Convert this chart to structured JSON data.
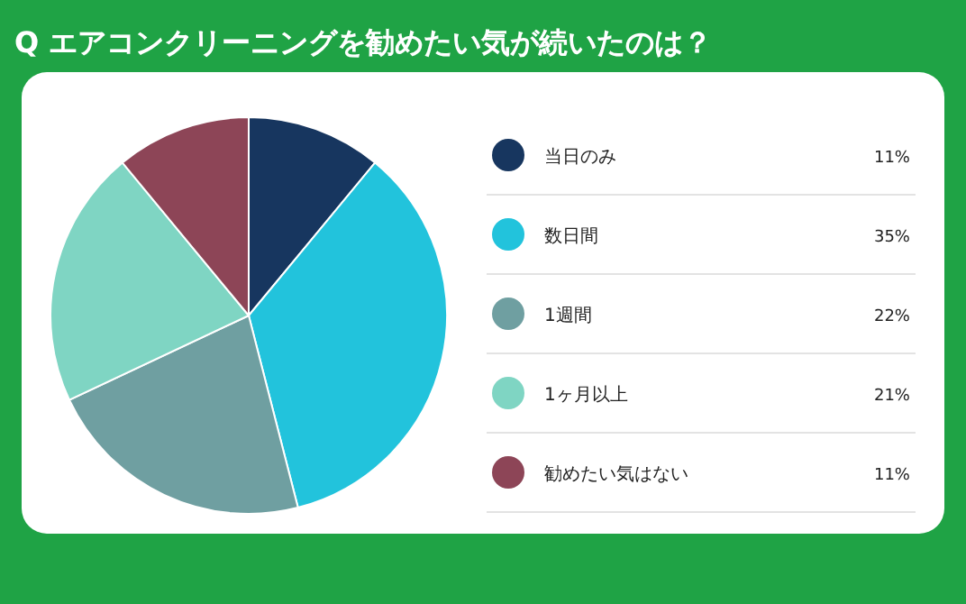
{
  "chart_data": {
    "type": "pie",
    "title": "Q エアコンクリーニングを勧めたい気が続いたのは？",
    "categories": [
      "当日のみ",
      "数日間",
      "1週間",
      "1ヶ月以上",
      "勧めたい気はない"
    ],
    "values": [
      11,
      35,
      22,
      21,
      11
    ],
    "value_labels": [
      "11%",
      "35%",
      "22%",
      "21%",
      "11%"
    ],
    "colors": [
      "#17365f",
      "#22c3dc",
      "#6f9fa1",
      "#7fd5c3",
      "#8d4557"
    ],
    "legend": "right"
  }
}
